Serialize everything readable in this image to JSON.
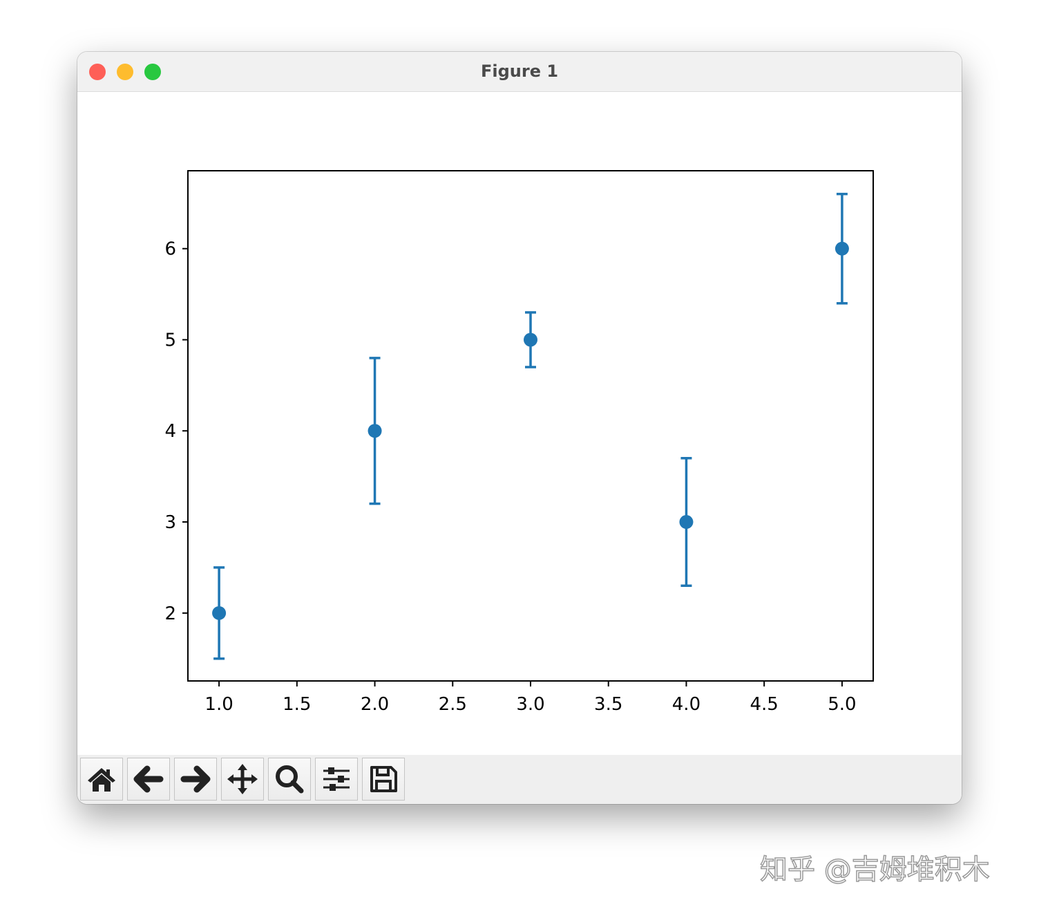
{
  "window": {
    "title": "Figure 1",
    "lights": [
      "#fe5f57",
      "#febc2e",
      "#28c840"
    ]
  },
  "toolbar": [
    {
      "name": "home-icon",
      "label": "Home"
    },
    {
      "name": "back-arrow-icon",
      "label": "Back"
    },
    {
      "name": "forward-arrow-icon",
      "label": "Forward"
    },
    {
      "name": "pan-move-icon",
      "label": "Pan"
    },
    {
      "name": "zoom-magnifier-icon",
      "label": "Zoom"
    },
    {
      "name": "subplots-sliders-icon",
      "label": "Configure subplots"
    },
    {
      "name": "save-floppy-icon",
      "label": "Save"
    }
  ],
  "watermark": "知乎 @吉姆堆积木",
  "chart_data": {
    "type": "scatter",
    "subtype": "errorbar",
    "color": "#1f77b4",
    "x": [
      1,
      2,
      3,
      4,
      5
    ],
    "y": [
      2,
      4,
      5,
      3,
      6
    ],
    "yerr": [
      0.5,
      0.8,
      0.3,
      0.7,
      0.6
    ],
    "xlim": [
      0.8,
      5.2
    ],
    "ylim": [
      1.255,
      6.855
    ],
    "xticks": [
      "1.0",
      "1.5",
      "2.0",
      "2.5",
      "3.0",
      "3.5",
      "4.0",
      "4.5",
      "5.0"
    ],
    "yticks": [
      "2",
      "3",
      "4",
      "5",
      "6"
    ],
    "grid": false,
    "title": "",
    "xlabel": "",
    "ylabel": ""
  }
}
